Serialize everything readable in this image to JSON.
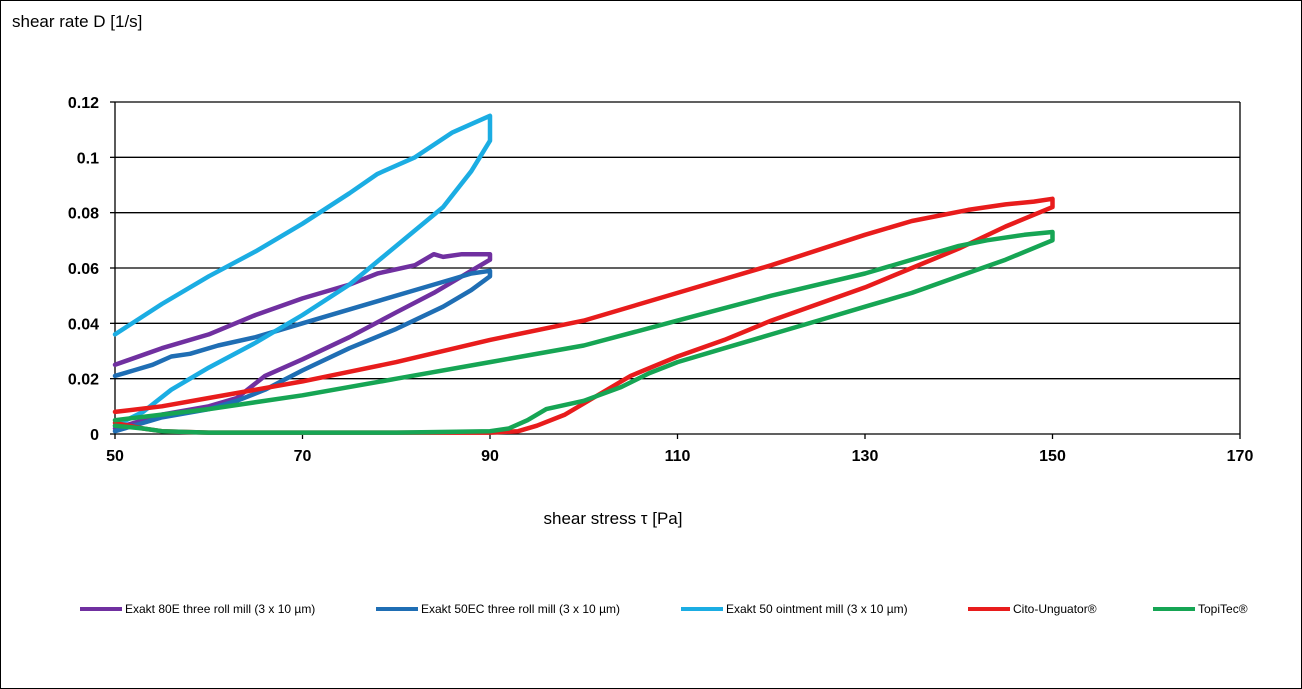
{
  "chart_data": {
    "type": "line",
    "title": "",
    "xlabel": "shear stress τ [Pa]",
    "ylabel": "shear rate D [1/s]",
    "xlim": [
      50,
      170
    ],
    "ylim": [
      0,
      0.12
    ],
    "x_ticks": [
      "50",
      "70",
      "90",
      "110",
      "130",
      "150",
      "170"
    ],
    "y_ticks": [
      "0",
      "0.02",
      "0.04",
      "0.06",
      "0.08",
      "0.1",
      "0.12"
    ],
    "grid": "horizontal",
    "legend_position": "bottom",
    "series": [
      {
        "name": "Exakt 80E three roll mill (3 x 10 µm)",
        "color": "#7030A0",
        "points": [
          [
            50,
            0.002
          ],
          [
            55,
            0.007
          ],
          [
            60,
            0.01
          ],
          [
            63,
            0.013
          ],
          [
            66,
            0.021
          ],
          [
            70,
            0.027
          ],
          [
            75,
            0.035
          ],
          [
            80,
            0.044
          ],
          [
            84,
            0.051
          ],
          [
            87,
            0.057
          ],
          [
            90,
            0.063
          ],
          [
            90,
            0.065
          ],
          [
            87,
            0.065
          ],
          [
            85,
            0.064
          ],
          [
            84,
            0.065
          ],
          [
            82,
            0.061
          ],
          [
            78,
            0.058
          ],
          [
            75,
            0.054
          ],
          [
            70,
            0.049
          ],
          [
            65,
            0.043
          ],
          [
            60,
            0.036
          ],
          [
            55,
            0.031
          ],
          [
            50,
            0.025
          ]
        ]
      },
      {
        "name": "Exakt 50EC three roll mill (3 x 10 µm)",
        "color": "#1F6EB4",
        "points": [
          [
            50,
            0.001
          ],
          [
            55,
            0.006
          ],
          [
            60,
            0.009
          ],
          [
            63,
            0.012
          ],
          [
            66,
            0.016
          ],
          [
            70,
            0.023
          ],
          [
            75,
            0.031
          ],
          [
            80,
            0.038
          ],
          [
            85,
            0.046
          ],
          [
            88,
            0.052
          ],
          [
            90,
            0.057
          ],
          [
            90,
            0.059
          ],
          [
            88,
            0.058
          ],
          [
            86,
            0.056
          ],
          [
            82,
            0.052
          ],
          [
            76,
            0.046
          ],
          [
            70,
            0.04
          ],
          [
            65,
            0.035
          ],
          [
            61,
            0.032
          ],
          [
            58,
            0.029
          ],
          [
            56,
            0.028
          ],
          [
            54,
            0.025
          ],
          [
            52,
            0.023
          ],
          [
            50,
            0.021
          ]
        ]
      },
      {
        "name": "Exakt 50 ointment mill (3 x 10 µm)",
        "color": "#1BADE3",
        "points": [
          [
            50,
            0.003
          ],
          [
            53,
            0.008
          ],
          [
            56,
            0.016
          ],
          [
            60,
            0.024
          ],
          [
            65,
            0.033
          ],
          [
            70,
            0.043
          ],
          [
            75,
            0.054
          ],
          [
            80,
            0.068
          ],
          [
            85,
            0.082
          ],
          [
            88,
            0.095
          ],
          [
            90,
            0.106
          ],
          [
            90,
            0.115
          ],
          [
            88,
            0.112
          ],
          [
            86,
            0.109
          ],
          [
            82,
            0.1
          ],
          [
            78,
            0.094
          ],
          [
            75,
            0.087
          ],
          [
            70,
            0.076
          ],
          [
            65,
            0.066
          ],
          [
            60,
            0.057
          ],
          [
            55,
            0.047
          ],
          [
            50,
            0.036
          ]
        ]
      },
      {
        "name": "Cito-Unguator®",
        "color": "#E81C1C",
        "points": [
          [
            50,
            0.004
          ],
          [
            53,
            0.002
          ],
          [
            55,
            0.001
          ],
          [
            60,
            0.0005
          ],
          [
            70,
            0.0005
          ],
          [
            80,
            0.0005
          ],
          [
            90,
            0.0005
          ],
          [
            93,
            0.001
          ],
          [
            95,
            0.003
          ],
          [
            98,
            0.007
          ],
          [
            101,
            0.013
          ],
          [
            105,
            0.021
          ],
          [
            110,
            0.028
          ],
          [
            115,
            0.034
          ],
          [
            120,
            0.041
          ],
          [
            125,
            0.047
          ],
          [
            130,
            0.053
          ],
          [
            135,
            0.06
          ],
          [
            140,
            0.067
          ],
          [
            145,
            0.075
          ],
          [
            150,
            0.082
          ],
          [
            150,
            0.085
          ],
          [
            148,
            0.084
          ],
          [
            145,
            0.083
          ],
          [
            141,
            0.081
          ],
          [
            135,
            0.077
          ],
          [
            130,
            0.072
          ],
          [
            120,
            0.061
          ],
          [
            110,
            0.051
          ],
          [
            100,
            0.041
          ],
          [
            90,
            0.034
          ],
          [
            80,
            0.026
          ],
          [
            70,
            0.019
          ],
          [
            60,
            0.013
          ],
          [
            55,
            0.01
          ],
          [
            50,
            0.008
          ]
        ]
      },
      {
        "name": "TopiTec®",
        "color": "#16A554",
        "points": [
          [
            50,
            0.003
          ],
          [
            53,
            0.002
          ],
          [
            55,
            0.001
          ],
          [
            60,
            0.0005
          ],
          [
            70,
            0.0005
          ],
          [
            80,
            0.0005
          ],
          [
            90,
            0.001
          ],
          [
            92,
            0.002
          ],
          [
            94,
            0.005
          ],
          [
            96,
            0.009
          ],
          [
            100,
            0.012
          ],
          [
            104,
            0.017
          ],
          [
            107,
            0.022
          ],
          [
            110,
            0.026
          ],
          [
            115,
            0.031
          ],
          [
            120,
            0.036
          ],
          [
            125,
            0.041
          ],
          [
            130,
            0.046
          ],
          [
            135,
            0.051
          ],
          [
            140,
            0.057
          ],
          [
            145,
            0.063
          ],
          [
            150,
            0.07
          ],
          [
            150,
            0.073
          ],
          [
            147,
            0.072
          ],
          [
            143,
            0.07
          ],
          [
            140,
            0.068
          ],
          [
            130,
            0.058
          ],
          [
            120,
            0.05
          ],
          [
            110,
            0.041
          ],
          [
            100,
            0.032
          ],
          [
            90,
            0.026
          ],
          [
            80,
            0.02
          ],
          [
            70,
            0.014
          ],
          [
            60,
            0.009
          ],
          [
            55,
            0.007
          ],
          [
            50,
            0.005
          ]
        ]
      }
    ]
  }
}
